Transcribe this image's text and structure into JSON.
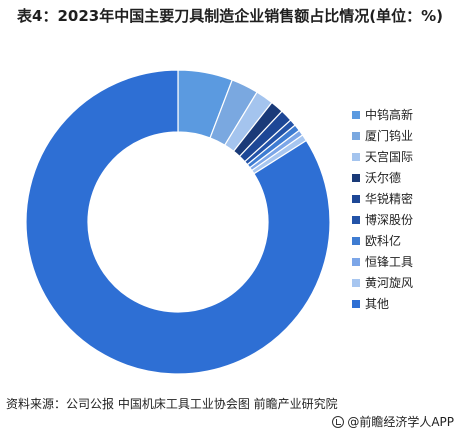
{
  "title": "表4：2023年中国主要刀具制造企业销售额占比情况(单位：%)",
  "source": "资料来源：公司公报 中国机床工具工业协会图 前瞻产业研究院",
  "brand": "@前瞻经济学人APP",
  "chart_data": {
    "type": "pie",
    "variant": "donut",
    "title": "表4：2023年中国主要刀具制造企业销售额占比情况(单位：%)",
    "categories": [
      "中钨高新",
      "厦门钨业",
      "天宫国际",
      "沃尔德",
      "华锐精密",
      "博深股份",
      "欧科亿",
      "恒锋工具",
      "黄河旋风",
      "其他"
    ],
    "values": [
      5.8,
      2.9,
      1.9,
      1.4,
      1.3,
      0.7,
      0.7,
      0.6,
      0.7,
      84.0
    ],
    "colors": [
      "#5b9ae0",
      "#7aa8e0",
      "#a4c4ee",
      "#1a3a78",
      "#1d4796",
      "#2353a8",
      "#3e7cd2",
      "#7ca6e8",
      "#a7c6f0",
      "#2e6fd4"
    ],
    "legend_position": "right",
    "unit": "%"
  }
}
